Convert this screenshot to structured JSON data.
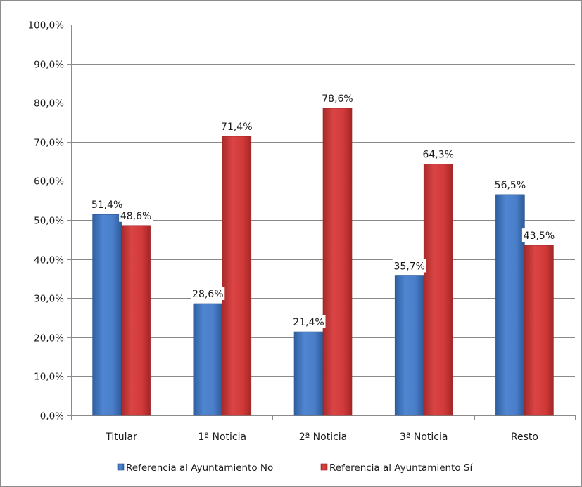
{
  "chart_data": {
    "type": "bar",
    "categories": [
      "Titular",
      "1ª Noticia",
      "2ª Noticia",
      "3ª Noticia",
      "Resto"
    ],
    "series": [
      {
        "name": "Referencia al Ayuntamiento No",
        "values": [
          51.4,
          28.6,
          21.4,
          35.7,
          56.5
        ],
        "labels": [
          "51,4%",
          "28,6%",
          "21,4%",
          "35,7%",
          "56,5%"
        ],
        "color": "#4a7ec9"
      },
      {
        "name": "Referencia al Ayuntamiento Sí",
        "values": [
          48.6,
          71.4,
          78.6,
          64.3,
          43.5
        ],
        "labels": [
          "48,6%",
          "71,4%",
          "78,6%",
          "64,3%",
          "43,5%"
        ],
        "color": "#d23a3a"
      }
    ],
    "ylim": [
      0,
      100
    ],
    "yticks": [
      "0,0%",
      "10,0%",
      "20,0%",
      "30,0%",
      "40,0%",
      "50,0%",
      "60,0%",
      "70,0%",
      "80,0%",
      "90,0%",
      "100,0%"
    ],
    "grid": true,
    "legend_position": "bottom"
  }
}
